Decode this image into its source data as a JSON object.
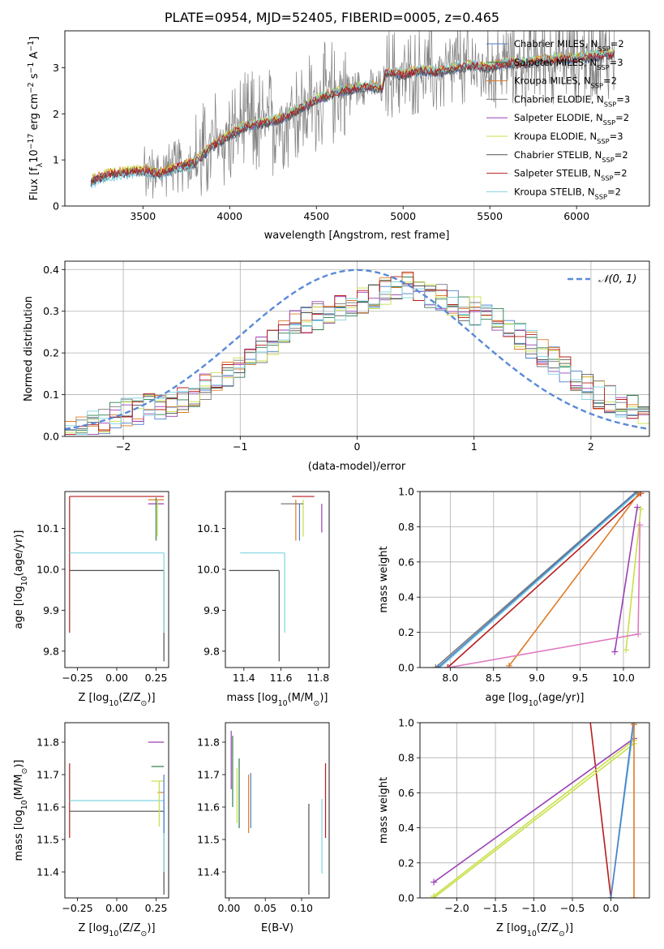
{
  "figure": {
    "title": "PLATE=0954, MJD=52405, FIBERID=0005, z=0.465"
  },
  "models": [
    {
      "name": "Chabrier MILES, N$_{SSP}$=2",
      "label_main": "Chabrier MILES, N",
      "label_sub": "SSP",
      "label_tail": "=2",
      "color": "#4a7ec8"
    },
    {
      "name": "Salpeter MILES, N_SSP=3",
      "label_main": "Salpeter MILES, N",
      "label_sub": "SSP",
      "label_tail": "=3",
      "color": "#2e7d4a"
    },
    {
      "name": "Kroupa MILES, N_SSP=2",
      "label_main": "Kroupa MILES, N",
      "label_sub": "SSP",
      "label_tail": "=2",
      "color": "#e07b25"
    },
    {
      "name": "Chabrier ELODIE, N_SSP=3",
      "label_main": "Chabrier ELODIE, N",
      "label_sub": "SSP",
      "label_tail": "=3",
      "color": "#7a7a7a"
    },
    {
      "name": "Salpeter ELODIE, N_SSP=2",
      "label_main": "Salpeter ELODIE, N",
      "label_sub": "SSP",
      "label_tail": "=2",
      "color": "#9a3fb5"
    },
    {
      "name": "Kroupa ELODIE, N_SSP=3",
      "label_main": "Kroupa ELODIE, N",
      "label_sub": "SSP",
      "label_tail": "=3",
      "color": "#c8e04a"
    },
    {
      "name": "Chabrier STELIB, N_SSP=2",
      "label_main": "Chabrier STELIB, N",
      "label_sub": "SSP",
      "label_tail": "=2",
      "color": "#505050"
    },
    {
      "name": "Salpeter STELIB, N_SSP=2",
      "label_main": "Salpeter STELIB, N",
      "label_sub": "SSP",
      "label_tail": "=2",
      "color": "#b81c1c"
    },
    {
      "name": "Kroupa STELIB, N_SSP=2",
      "label_main": "Kroupa STELIB, N",
      "label_sub": "SSP",
      "label_tail": "=2",
      "color": "#7fd4e0"
    }
  ],
  "chart_data": [
    {
      "id": "spectrum",
      "type": "line",
      "xlabel": "wavelength [Angstrom, rest frame]",
      "ylabel": "Flux [f",
      "ylabel_sub": "λ",
      "ylabel_mid": "10",
      "ylabel_sup": "−17",
      "ylabel_units": " erg cm",
      "ylabel_sup2": "−2",
      "ylabel_s": " s",
      "ylabel_sup3": "−1",
      "ylabel_end": " A",
      "ylabel_sup4": "−1",
      "ylabel_close": "]",
      "xlim": [
        3050,
        6420
      ],
      "ylim": [
        0,
        3.8
      ],
      "xticks": [
        "3500",
        "4000",
        "4500",
        "5000",
        "5500",
        "6000"
      ],
      "xtick_values": [
        3500,
        4000,
        4500,
        5000,
        5500,
        6000
      ],
      "yticks": [
        "0",
        "1",
        "2",
        "3"
      ],
      "ytick_values": [
        0,
        1,
        2,
        3
      ],
      "grid": false,
      "legend": "top-right",
      "continuum": [
        [
          3200,
          0.55
        ],
        [
          3300,
          0.7
        ],
        [
          3500,
          0.78
        ],
        [
          3600,
          0.7
        ],
        [
          3700,
          0.85
        ],
        [
          3800,
          0.95
        ],
        [
          3900,
          1.3
        ],
        [
          4000,
          1.55
        ],
        [
          4100,
          1.75
        ],
        [
          4200,
          1.8
        ],
        [
          4300,
          1.9
        ],
        [
          4400,
          2.1
        ],
        [
          4500,
          2.3
        ],
        [
          4600,
          2.45
        ],
        [
          4700,
          2.55
        ],
        [
          4800,
          2.6
        ],
        [
          4880,
          2.55
        ],
        [
          4900,
          2.9
        ],
        [
          5000,
          2.85
        ],
        [
          5100,
          2.95
        ],
        [
          5200,
          2.9
        ],
        [
          5300,
          3.0
        ],
        [
          5400,
          3.05
        ],
        [
          5500,
          3.0
        ],
        [
          5600,
          3.1
        ],
        [
          5700,
          3.1
        ],
        [
          5800,
          3.15
        ],
        [
          5900,
          3.2
        ],
        [
          6000,
          3.2
        ],
        [
          6100,
          3.25
        ],
        [
          6200,
          3.3
        ]
      ]
    },
    {
      "id": "residuals",
      "type": "line",
      "xlabel": "(data-model)/error",
      "ylabel": "Normed distribution",
      "xlim": [
        -2.5,
        2.5
      ],
      "ylim": [
        0,
        0.42
      ],
      "xticks": [
        "−2",
        "−1",
        "0",
        "1",
        "2"
      ],
      "xtick_values": [
        -2,
        -1,
        0,
        1,
        2
      ],
      "yticks": [
        "0.0",
        "0.1",
        "0.2",
        "0.3",
        "0.4"
      ],
      "ytick_values": [
        0,
        0.1,
        0.2,
        0.3,
        0.4
      ],
      "grid": true,
      "legend": "top-right",
      "reference_curve": {
        "name": "N(0,1)",
        "label": "𝒩(0, 1)",
        "color": "#5a8ad6"
      },
      "histogram_envelope": [
        0.02,
        0.025,
        0.035,
        0.04,
        0.05,
        0.06,
        0.06,
        0.07,
        0.07,
        0.08,
        0.09,
        0.1,
        0.12,
        0.13,
        0.15,
        0.17,
        0.19,
        0.21,
        0.23,
        0.25,
        0.27,
        0.28,
        0.29,
        0.3,
        0.31,
        0.32,
        0.33,
        0.34,
        0.35,
        0.35,
        0.36,
        0.35,
        0.34,
        0.33,
        0.32,
        0.31,
        0.3,
        0.29,
        0.28,
        0.26,
        0.24,
        0.22,
        0.2,
        0.18,
        0.16,
        0.14,
        0.12,
        0.1,
        0.09,
        0.08,
        0.07,
        0.065
      ]
    },
    {
      "id": "age-vs-Z",
      "type": "scatter",
      "xlabel": "Z [log",
      "xlabel_sub": "10",
      "xlabel_mid": "(Z/Z",
      "xlabel_sub2": "⊙",
      "xlabel_end": ")]",
      "ylabel": "age  [log",
      "ylabel_sub": "10",
      "ylabel_end": "(age/yr)]",
      "xlim": [
        -0.33,
        0.33
      ],
      "ylim": [
        9.76,
        10.19
      ],
      "xticks": [
        "−0.25",
        "0.00",
        "0.25"
      ],
      "xtick_values": [
        -0.25,
        0,
        0.25
      ],
      "yticks": [
        "9.8",
        "9.9",
        "10.0",
        "10.1"
      ],
      "ytick_values": [
        9.8,
        9.9,
        10.0,
        10.1
      ],
      "grid": false,
      "segments": [
        {
          "model": 7,
          "kind": "h",
          "at": 10.178,
          "from": -0.3,
          "to": 0.3
        },
        {
          "model": 7,
          "kind": "v",
          "at": -0.3,
          "from": 9.845,
          "to": 10.178
        },
        {
          "model": 8,
          "kind": "h",
          "at": 10.04,
          "from": -0.3,
          "to": 0.3
        },
        {
          "model": 6,
          "kind": "h",
          "at": 9.997,
          "from": -0.3,
          "to": 0.3
        },
        {
          "model": 6,
          "kind": "v",
          "at": 0.3,
          "from": 9.775,
          "to": 9.997
        },
        {
          "model": 8,
          "kind": "v",
          "at": 0.3,
          "from": 9.845,
          "to": 10.04
        },
        {
          "model": 2,
          "kind": "h",
          "at": 10.17,
          "from": 0.2,
          "to": 0.3
        },
        {
          "model": 4,
          "kind": "h",
          "at": 10.16,
          "from": 0.2,
          "to": 0.3
        },
        {
          "model": 5,
          "kind": "v",
          "at": 0.26,
          "from": 10.08,
          "to": 10.17
        },
        {
          "model": 1,
          "kind": "v",
          "at": 0.25,
          "from": 10.07,
          "to": 10.175
        }
      ]
    },
    {
      "id": "age-vs-mass",
      "type": "scatter",
      "xlabel": "mass [log",
      "xlabel_sub": "10",
      "xlabel_mid": "(M/M",
      "xlabel_sub2": "⊙",
      "xlabel_end": ")]",
      "xlim": [
        11.3,
        11.86
      ],
      "ylim": [
        9.76,
        10.19
      ],
      "xticks": [
        "11.4",
        "11.6",
        "11.8"
      ],
      "xtick_values": [
        11.4,
        11.6,
        11.8
      ],
      "yticks": [
        "9.8",
        "9.9",
        "10.0",
        "10.1"
      ],
      "ytick_values": [
        9.8,
        9.9,
        10.0,
        10.1
      ],
      "grid": false,
      "segments": [
        {
          "model": 7,
          "kind": "h",
          "at": 10.178,
          "from": 11.66,
          "to": 11.78
        },
        {
          "model": 8,
          "kind": "h",
          "at": 10.04,
          "from": 11.38,
          "to": 11.62
        },
        {
          "model": 8,
          "kind": "v",
          "at": 11.62,
          "from": 9.845,
          "to": 10.04
        },
        {
          "model": 6,
          "kind": "h",
          "at": 9.997,
          "from": 11.32,
          "to": 11.59
        },
        {
          "model": 6,
          "kind": "v",
          "at": 11.59,
          "from": 9.775,
          "to": 9.997
        },
        {
          "model": 2,
          "kind": "v",
          "at": 11.68,
          "from": 10.07,
          "to": 10.17
        },
        {
          "model": 5,
          "kind": "v",
          "at": 11.72,
          "from": 10.08,
          "to": 10.17
        },
        {
          "model": 4,
          "kind": "v",
          "at": 11.82,
          "from": 10.09,
          "to": 10.16
        },
        {
          "model": 0,
          "kind": "v",
          "at": 11.7,
          "from": 10.07,
          "to": 10.16
        },
        {
          "model": 3,
          "kind": "h",
          "at": 10.16,
          "from": 11.6,
          "to": 11.72
        }
      ]
    },
    {
      "id": "massweight-vs-age",
      "type": "line",
      "xlabel": "age  [log",
      "xlabel_sub": "10",
      "xlabel_end": "(age/yr)]",
      "ylabel": "mass weight",
      "xlim": [
        7.65,
        10.3
      ],
      "ylim": [
        0,
        1.0
      ],
      "xticks": [
        "8.0",
        "8.5",
        "9.0",
        "9.5",
        "10.0"
      ],
      "xtick_values": [
        8.0,
        8.5,
        9.0,
        9.5,
        10.0
      ],
      "yticks": [
        "0.0",
        "0.2",
        "0.4",
        "0.6",
        "0.8",
        "1.0"
      ],
      "ytick_values": [
        0,
        0.2,
        0.4,
        0.6,
        0.8,
        1.0
      ],
      "grid": true,
      "lines": [
        {
          "model": 3,
          "points": [
            [
              7.83,
              0.0
            ],
            [
              10.15,
              1.0
            ]
          ]
        },
        {
          "model": 8,
          "points": [
            [
              7.88,
              0.0
            ],
            [
              10.18,
              1.0
            ]
          ]
        },
        {
          "model": 0,
          "points": [
            [
              7.86,
              0.0
            ],
            [
              10.16,
              1.0
            ]
          ]
        },
        {
          "model": 7,
          "points": [
            [
              7.97,
              0.0
            ],
            [
              10.2,
              0.99
            ]
          ]
        },
        {
          "model": 2,
          "points": [
            [
              8.68,
              0.01
            ],
            [
              10.18,
              0.99
            ]
          ]
        },
        {
          "model": 4,
          "points": [
            [
              9.9,
              0.09
            ],
            [
              10.16,
              0.91
            ]
          ]
        },
        {
          "model": 5,
          "points": [
            [
              10.03,
              0.1
            ],
            [
              10.2,
              0.9
            ]
          ]
        },
        {
          "model": 1,
          "points": [
            [
              7.98,
              0.0
            ],
            [
              10.17,
              0.19
            ],
            [
              10.19,
              0.81
            ]
          ],
          "color": "#e07bbf"
        }
      ]
    },
    {
      "id": "mass-vs-Z",
      "type": "scatter",
      "xlabel": "Z [log",
      "xlabel_sub": "10",
      "xlabel_mid": "(Z/Z",
      "xlabel_sub2": "⊙",
      "xlabel_end": ")]",
      "ylabel": "mass [log",
      "ylabel_sub": "10",
      "ylabel_mid": "(M/M",
      "ylabel_sub2": "⊙",
      "ylabel_end": ")]",
      "xlim": [
        -0.33,
        0.33
      ],
      "ylim": [
        11.32,
        11.86
      ],
      "xticks": [
        "−0.25",
        "0.00",
        "0.25"
      ],
      "xtick_values": [
        -0.25,
        0,
        0.25
      ],
      "yticks": [
        "11.4",
        "11.5",
        "11.6",
        "11.7",
        "11.8"
      ],
      "ytick_values": [
        11.4,
        11.5,
        11.6,
        11.7,
        11.8
      ],
      "grid": false,
      "segments": [
        {
          "model": 7,
          "kind": "v",
          "at": -0.3,
          "from": 11.505,
          "to": 11.735
        },
        {
          "model": 8,
          "kind": "h",
          "at": 11.62,
          "from": -0.3,
          "to": 0.3
        },
        {
          "model": 6,
          "kind": "h",
          "at": 11.587,
          "from": -0.3,
          "to": 0.3
        },
        {
          "model": 6,
          "kind": "v",
          "at": 0.3,
          "from": 11.33,
          "to": 11.587
        },
        {
          "model": 8,
          "kind": "v",
          "at": 0.3,
          "from": 11.4,
          "to": 11.62
        },
        {
          "model": 4,
          "kind": "h",
          "at": 11.8,
          "from": 0.2,
          "to": 0.3
        },
        {
          "model": 1,
          "kind": "h",
          "at": 11.725,
          "from": 0.22,
          "to": 0.3
        },
        {
          "model": 5,
          "kind": "h",
          "at": 11.68,
          "from": 0.22,
          "to": 0.3
        },
        {
          "model": 2,
          "kind": "h",
          "at": 11.645,
          "from": 0.26,
          "to": 0.3
        },
        {
          "model": 5,
          "kind": "v",
          "at": 0.27,
          "from": 11.54,
          "to": 11.68
        },
        {
          "model": 0,
          "kind": "v",
          "at": 0.3,
          "from": 11.52,
          "to": 11.7
        }
      ]
    },
    {
      "id": "mass-vs-ebv",
      "type": "scatter",
      "xlabel": "E(B-V)",
      "xlim": [
        -0.005,
        0.138
      ],
      "ylim": [
        11.32,
        11.86
      ],
      "xticks": [
        "0.00",
        "0.05",
        "0.10"
      ],
      "xtick_values": [
        0,
        0.05,
        0.1
      ],
      "yticks": [
        "11.4",
        "11.5",
        "11.6",
        "11.7",
        "11.8"
      ],
      "ytick_values": [
        11.4,
        11.5,
        11.6,
        11.7,
        11.8
      ],
      "grid": false,
      "segments": [
        {
          "model": 4,
          "kind": "v",
          "at": 0.003,
          "from": 11.655,
          "to": 11.835
        },
        {
          "model": 1,
          "kind": "v",
          "at": 0.005,
          "from": 11.6,
          "to": 11.82
        },
        {
          "model": 5,
          "kind": "v",
          "at": 0.011,
          "from": 11.55,
          "to": 11.72
        },
        {
          "model": 1,
          "kind": "v",
          "at": 0.014,
          "from": 11.535,
          "to": 11.75
        },
        {
          "model": 2,
          "kind": "v",
          "at": 0.027,
          "from": 11.52,
          "to": 11.7
        },
        {
          "model": 0,
          "kind": "v",
          "at": 0.03,
          "from": 11.535,
          "to": 11.705
        },
        {
          "model": 6,
          "kind": "v",
          "at": 0.11,
          "from": 11.33,
          "to": 11.61
        },
        {
          "model": 8,
          "kind": "v",
          "at": 0.128,
          "from": 11.395,
          "to": 11.625
        },
        {
          "model": 7,
          "kind": "v",
          "at": 0.133,
          "from": 11.505,
          "to": 11.735
        }
      ]
    },
    {
      "id": "massweight-vs-Z",
      "type": "line",
      "xlabel": "Z [log",
      "xlabel_sub": "10",
      "xlabel_mid": "(Z/Z",
      "xlabel_sub2": "⊙",
      "xlabel_end": ")]",
      "ylabel": "mass weight",
      "xlim": [
        -2.48,
        0.5
      ],
      "ylim": [
        0,
        1.0
      ],
      "xticks": [
        "−2.0",
        "−1.5",
        "−1.0",
        "−0.5",
        "0.0"
      ],
      "xtick_values": [
        -2.0,
        -1.5,
        -1.0,
        -0.5,
        0.0
      ],
      "yticks": [
        "0.0",
        "0.2",
        "0.4",
        "0.6",
        "0.8",
        "1.0"
      ],
      "ytick_values": [
        0,
        0.2,
        0.4,
        0.6,
        0.8,
        1.0
      ],
      "grid": true,
      "lines": [
        {
          "model": 7,
          "points": [
            [
              -0.28,
              1.05
            ],
            [
              0.0,
              0.0
            ]
          ]
        },
        {
          "model": 4,
          "points": [
            [
              -2.3,
              0.09
            ],
            [
              0.3,
              0.91
            ]
          ]
        },
        {
          "model": 5,
          "points": [
            [
              -2.3,
              0.01
            ],
            [
              0.3,
              0.9
            ]
          ]
        },
        {
          "model": 5,
          "points": [
            [
              -2.3,
              0.0
            ],
            [
              0.3,
              0.88
            ]
          ]
        },
        {
          "model": 8,
          "points": [
            [
              0.0,
              0.0
            ],
            [
              0.3,
              0.99
            ]
          ]
        },
        {
          "model": 0,
          "points": [
            [
              0.0,
              0.0
            ],
            [
              0.29,
              1.0
            ]
          ]
        },
        {
          "model": 2,
          "points": [
            [
              0.3,
              0.0
            ],
            [
              0.3,
              0.99
            ]
          ]
        }
      ]
    }
  ]
}
